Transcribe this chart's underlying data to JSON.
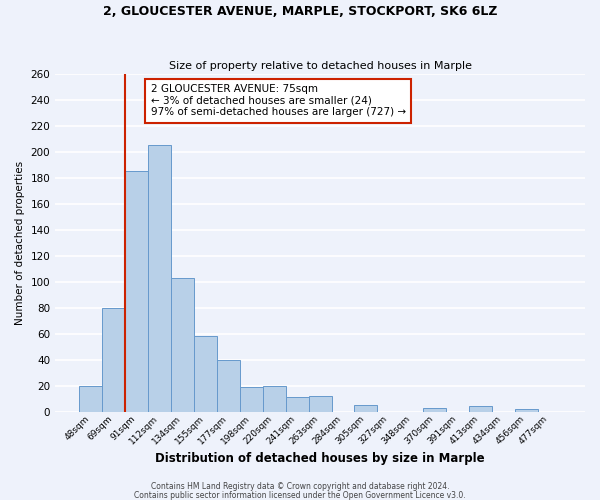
{
  "title": "2, GLOUCESTER AVENUE, MARPLE, STOCKPORT, SK6 6LZ",
  "subtitle": "Size of property relative to detached houses in Marple",
  "xlabel": "Distribution of detached houses by size in Marple",
  "ylabel": "Number of detached properties",
  "bin_labels": [
    "48sqm",
    "69sqm",
    "91sqm",
    "112sqm",
    "134sqm",
    "155sqm",
    "177sqm",
    "198sqm",
    "220sqm",
    "241sqm",
    "263sqm",
    "284sqm",
    "305sqm",
    "327sqm",
    "348sqm",
    "370sqm",
    "391sqm",
    "413sqm",
    "434sqm",
    "456sqm",
    "477sqm"
  ],
  "bar_heights": [
    20,
    80,
    185,
    205,
    103,
    58,
    40,
    19,
    20,
    11,
    12,
    0,
    5,
    0,
    0,
    3,
    0,
    4,
    0,
    2,
    0
  ],
  "bar_color": "#b8d0e8",
  "bar_edge_color": "#6699cc",
  "background_color": "#eef2fb",
  "grid_color": "#ffffff",
  "marker_line_color": "#cc2200",
  "annotation_title": "2 GLOUCESTER AVENUE: 75sqm",
  "annotation_line1": "← 3% of detached houses are smaller (24)",
  "annotation_line2": "97% of semi-detached houses are larger (727) →",
  "annotation_box_color": "#ffffff",
  "annotation_box_edge": "#cc2200",
  "ylim": [
    0,
    260
  ],
  "yticks": [
    0,
    20,
    40,
    60,
    80,
    100,
    120,
    140,
    160,
    180,
    200,
    220,
    240,
    260
  ],
  "footer1": "Contains HM Land Registry data © Crown copyright and database right 2024.",
  "footer2": "Contains public sector information licensed under the Open Government Licence v3.0."
}
